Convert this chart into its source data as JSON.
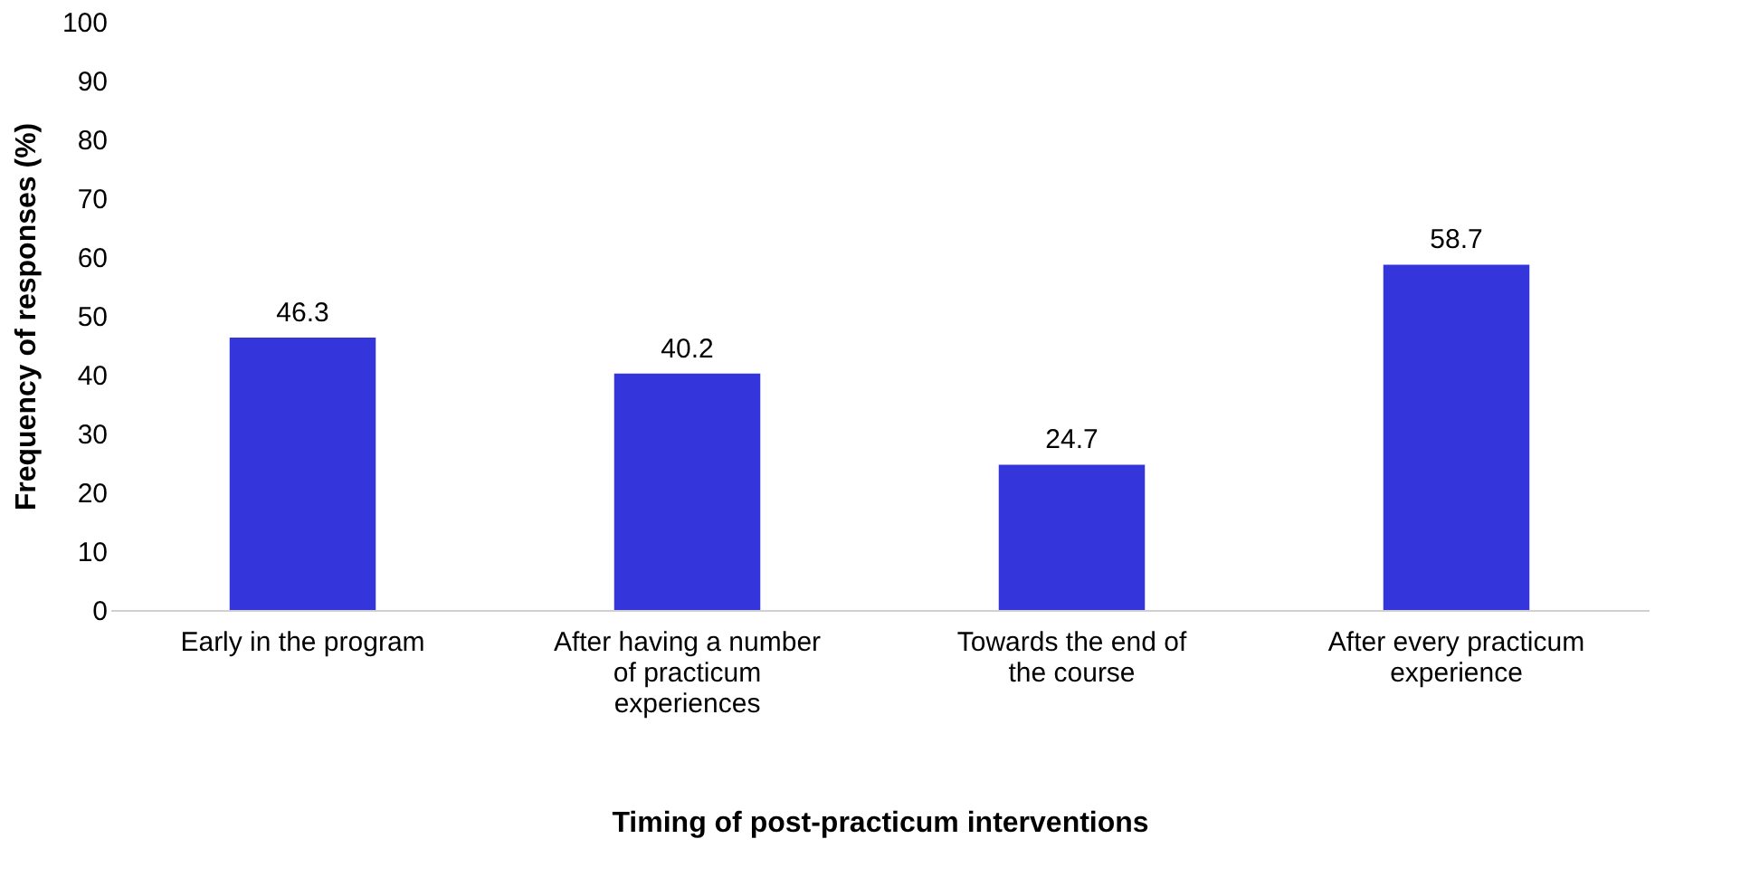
{
  "chart_data": {
    "type": "bar",
    "categories": [
      "Early in the program",
      "After having a number of practicum experiences",
      "Towards the end of the course",
      "After every practicum experience"
    ],
    "values": [
      46.3,
      40.2,
      24.7,
      58.7
    ],
    "color": "#3535dc",
    "xlabel": "Timing of post-practicum interventions",
    "ylabel": "Frequency of responses (%)",
    "ylim": [
      0,
      100
    ],
    "yticks": [
      0,
      10,
      20,
      30,
      40,
      50,
      60,
      70,
      80,
      90,
      100
    ],
    "data_labels": true,
    "grid": false
  }
}
